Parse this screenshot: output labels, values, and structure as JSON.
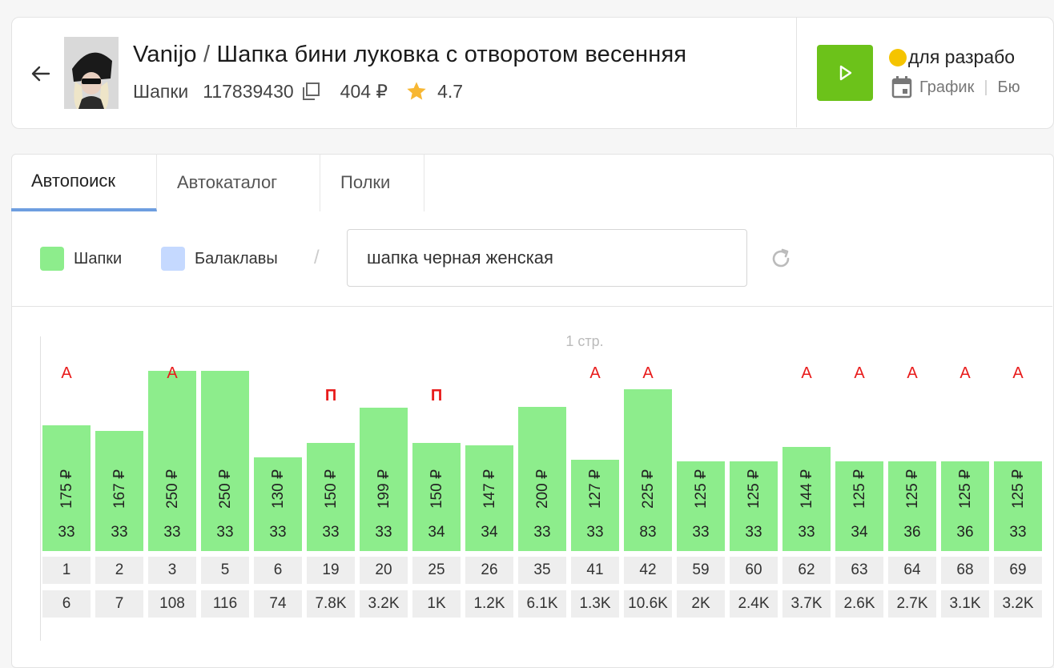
{
  "header": {
    "brand": "Vanijo",
    "separator": "/",
    "product_name": "Шапка бини луковка с отворотом весенняя",
    "category": "Шапки",
    "article": "117839430",
    "price": "404 ₽",
    "rating": "4.7",
    "dev_label": "для разрабо",
    "schedule_label": "График",
    "link2_label": "Бю"
  },
  "tabs": [
    {
      "label": "Автопоиск",
      "active": true
    },
    {
      "label": "Автокаталог",
      "active": false
    },
    {
      "label": "Полки",
      "active": false
    }
  ],
  "filters": {
    "legend": [
      {
        "label": "Шапки",
        "color": "#8ded8c"
      },
      {
        "label": "Балаклавы",
        "color": "#c5d9ff"
      }
    ],
    "separator": "/",
    "query": "шапка черная женская"
  },
  "chart_data": {
    "type": "bar",
    "page_label": "1 стр.",
    "marks_note": "",
    "items": [
      {
        "position": "1",
        "price": "175 ₽",
        "value": 175,
        "count": "33",
        "extra": "6",
        "mark": "А"
      },
      {
        "position": "2",
        "price": "167 ₽",
        "value": 167,
        "count": "33",
        "extra": "7",
        "mark": ""
      },
      {
        "position": "3",
        "price": "250 ₽",
        "value": 250,
        "count": "33",
        "extra": "108",
        "mark": "А"
      },
      {
        "position": "5",
        "price": "250 ₽",
        "value": 250,
        "count": "33",
        "extra": "116",
        "mark": ""
      },
      {
        "position": "6",
        "price": "130 ₽",
        "value": 130,
        "count": "33",
        "extra": "74",
        "mark": ""
      },
      {
        "position": "19",
        "price": "150 ₽",
        "value": 150,
        "count": "33",
        "extra": "7.8K",
        "mark": "П"
      },
      {
        "position": "20",
        "price": "199 ₽",
        "value": 199,
        "count": "33",
        "extra": "3.2K",
        "mark": ""
      },
      {
        "position": "25",
        "price": "150 ₽",
        "value": 150,
        "count": "34",
        "extra": "1K",
        "mark": "П"
      },
      {
        "position": "26",
        "price": "147 ₽",
        "value": 147,
        "count": "34",
        "extra": "1.2K",
        "mark": ""
      },
      {
        "position": "35",
        "price": "200 ₽",
        "value": 200,
        "count": "33",
        "extra": "6.1K",
        "mark": ""
      },
      {
        "position": "41",
        "price": "127 ₽",
        "value": 127,
        "count": "33",
        "extra": "1.3K",
        "mark": "А"
      },
      {
        "position": "42",
        "price": "225 ₽",
        "value": 225,
        "count": "83",
        "extra": "10.6K",
        "mark": "А"
      },
      {
        "position": "59",
        "price": "125 ₽",
        "value": 125,
        "count": "33",
        "extra": "2K",
        "mark": ""
      },
      {
        "position": "60",
        "price": "125 ₽",
        "value": 125,
        "count": "33",
        "extra": "2.4K",
        "mark": ""
      },
      {
        "position": "62",
        "price": "144 ₽",
        "value": 144,
        "count": "33",
        "extra": "3.7K",
        "mark": "А"
      },
      {
        "position": "63",
        "price": "125 ₽",
        "value": 125,
        "count": "34",
        "extra": "2.6K",
        "mark": "А"
      },
      {
        "position": "64",
        "price": "125 ₽",
        "value": 125,
        "count": "36",
        "extra": "2.7K",
        "mark": "А"
      },
      {
        "position": "68",
        "price": "125 ₽",
        "value": 125,
        "count": "36",
        "extra": "3.1K",
        "mark": "А"
      },
      {
        "position": "69",
        "price": "125 ₽",
        "value": 125,
        "count": "33",
        "extra": "3.2K",
        "mark": "А"
      }
    ]
  }
}
